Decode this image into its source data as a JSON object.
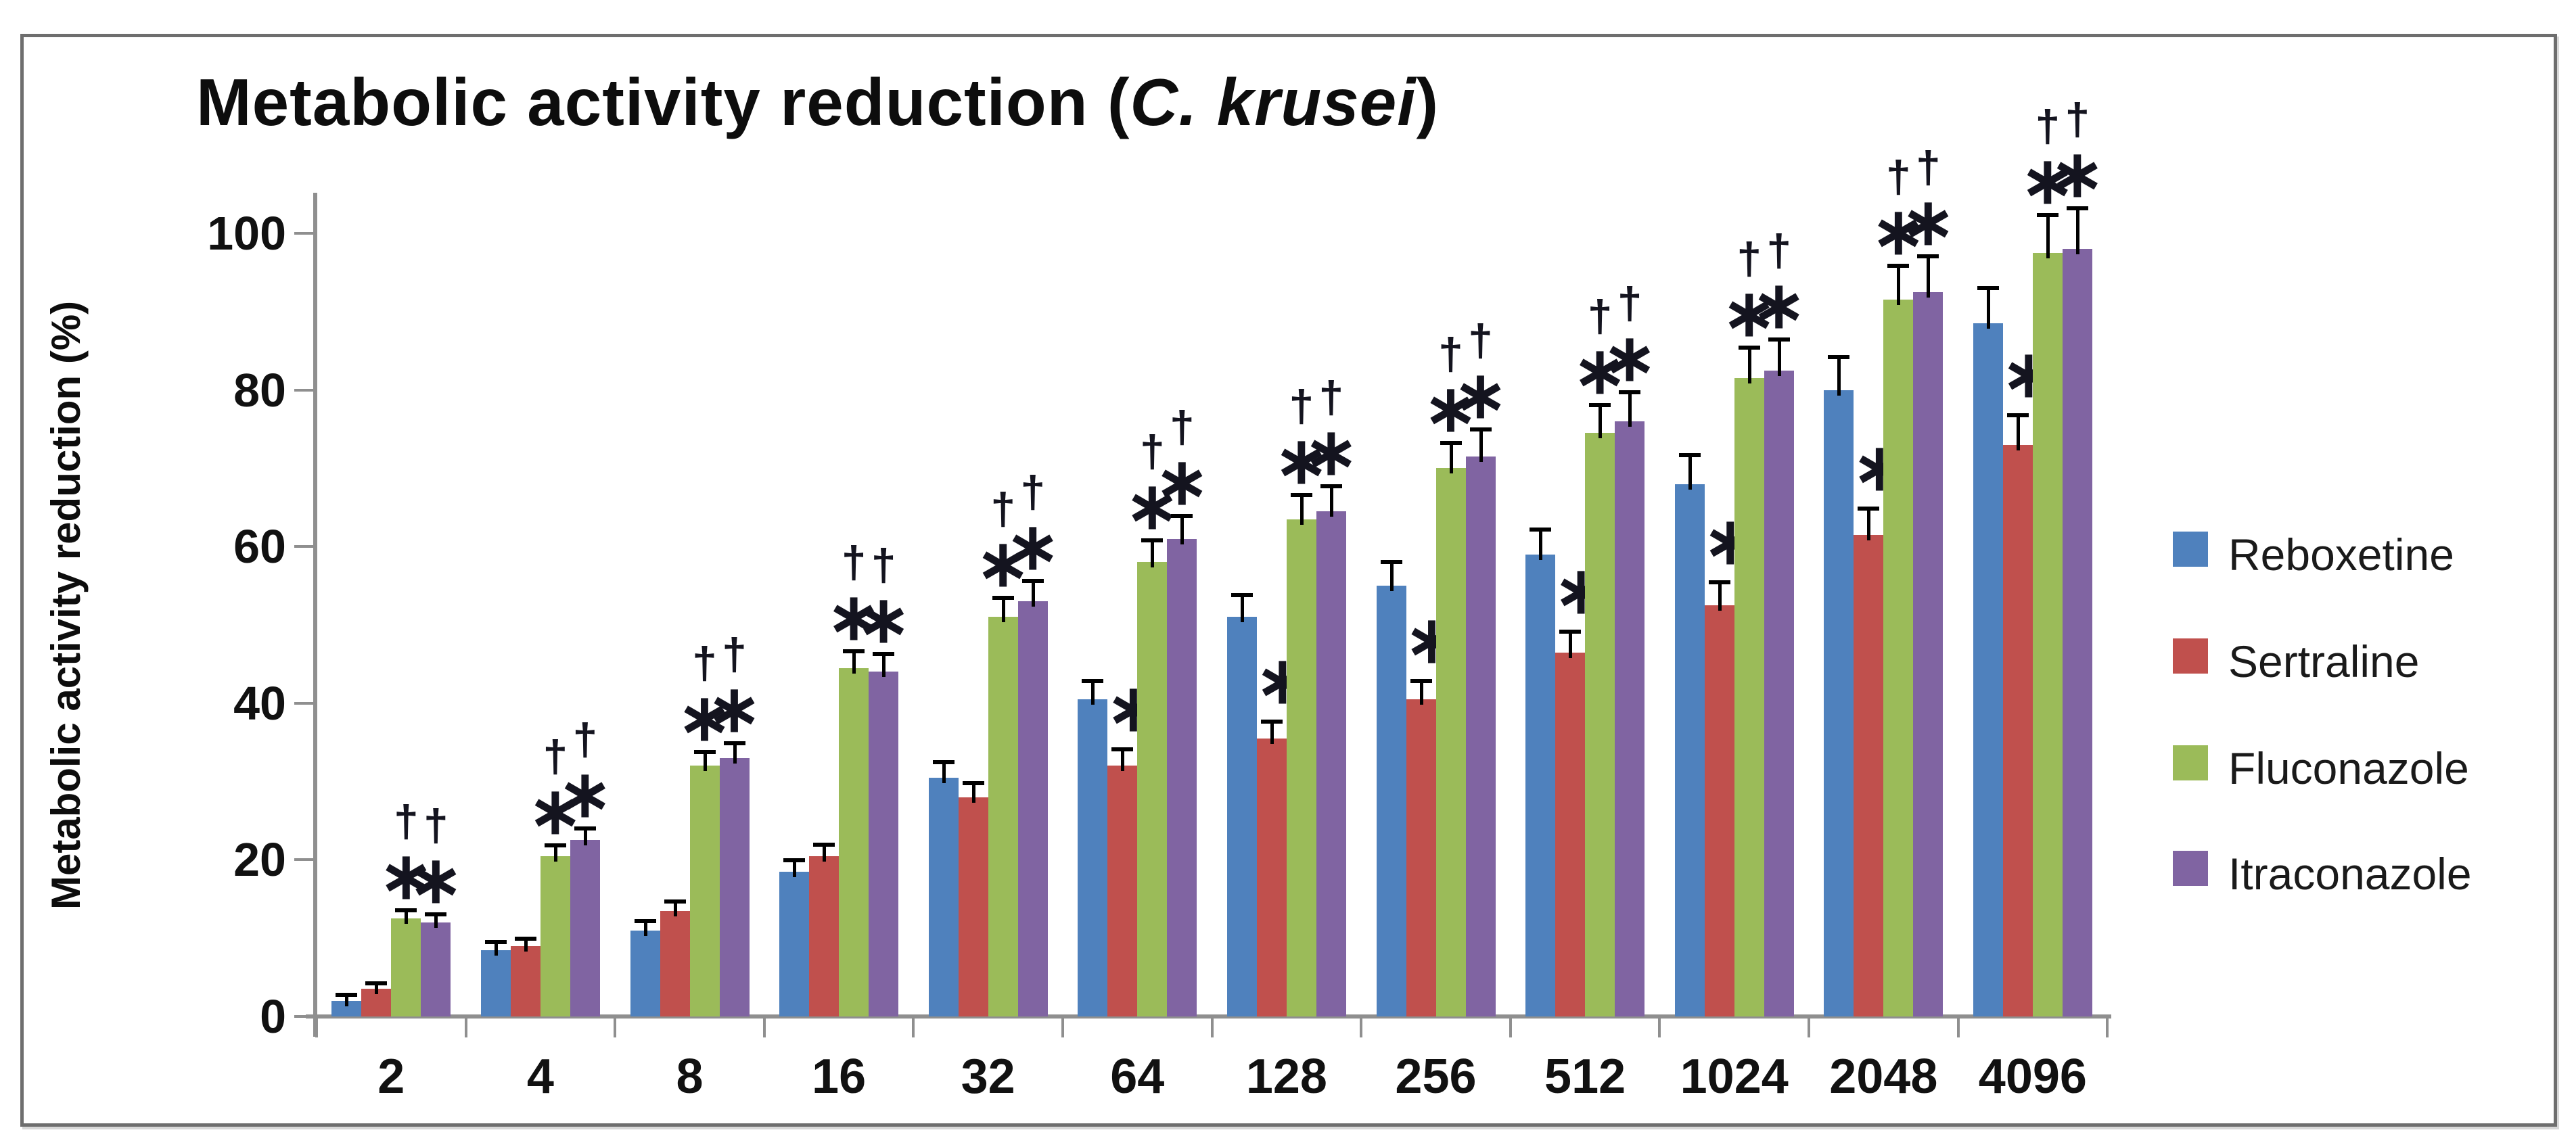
{
  "figure": {
    "title_plain": "Metabolic activity reduction (",
    "title_italic": "C. krusei",
    "title_close": ")"
  },
  "chart_data": {
    "type": "bar",
    "title": "Metabolic activity reduction (C. krusei)",
    "xlabel": "",
    "ylabel": "Metabolic activity reduction (%)",
    "ylim": [
      0,
      100
    ],
    "yticks": [
      0,
      20,
      40,
      60,
      80,
      100
    ],
    "grid": false,
    "error_bars": true,
    "legend_position": "right",
    "annotation_symbols": {
      "dagger": "†",
      "asterisk": "∗"
    },
    "categories": [
      "2",
      "4",
      "8",
      "16",
      "32",
      "64",
      "128",
      "256",
      "512",
      "1024",
      "2048",
      "4096"
    ],
    "series": [
      {
        "name": "Reboxetine",
        "color": "#4F81BD",
        "values": [
          2,
          8.5,
          11,
          18.5,
          30.5,
          40.5,
          51,
          55,
          59,
          68,
          80,
          88.5
        ],
        "errors": [
          0.6,
          0.8,
          1.0,
          1.3,
          1.8,
          2.2,
          2.6,
          2.9,
          3.0,
          3.5,
          4.0,
          4.3
        ],
        "annotations": [
          "",
          "",
          "",
          "",
          "",
          "",
          "",
          "",
          "",
          "",
          "",
          ""
        ]
      },
      {
        "name": "Sertraline",
        "color": "#C0504D",
        "values": [
          3.5,
          9,
          13.5,
          20.5,
          28,
          32,
          35.5,
          40.5,
          46.5,
          52.5,
          61.5,
          73
        ],
        "errors": [
          0.6,
          0.8,
          1.0,
          1.3,
          1.6,
          1.9,
          2.0,
          2.2,
          2.5,
          2.8,
          3.2,
          3.6
        ],
        "annotations": [
          "",
          "",
          "",
          "",
          "",
          "*",
          "*",
          "*",
          "*",
          "*",
          "*",
          "*"
        ]
      },
      {
        "name": "Fluconazole",
        "color": "#9BBB59",
        "values": [
          12.5,
          20.5,
          32,
          44.5,
          51,
          58,
          63.5,
          70,
          74.5,
          81.5,
          91.5,
          97.5
        ],
        "errors": [
          0.9,
          1.2,
          1.6,
          2.0,
          2.3,
          2.6,
          2.9,
          3.1,
          3.4,
          3.7,
          4.2,
          4.7
        ],
        "annotations": [
          "†*",
          "†*",
          "†*",
          "†*",
          "†*",
          "†*",
          "†*",
          "†*",
          "†*",
          "†*",
          "†*",
          "†*"
        ]
      },
      {
        "name": "Itraconazole",
        "color": "#8064A2",
        "values": [
          12,
          22.5,
          33,
          44,
          53,
          61,
          64.5,
          71.5,
          76,
          82.5,
          92.5,
          98
        ],
        "errors": [
          0.9,
          1.3,
          1.7,
          2.1,
          2.4,
          2.7,
          3.0,
          3.3,
          3.5,
          3.8,
          4.4,
          5.0
        ],
        "annotations": [
          "†*",
          "†*",
          "†*",
          "†*",
          "†*",
          "†*",
          "†*",
          "†*",
          "†*",
          "†*",
          "†*",
          "†*"
        ]
      }
    ]
  }
}
